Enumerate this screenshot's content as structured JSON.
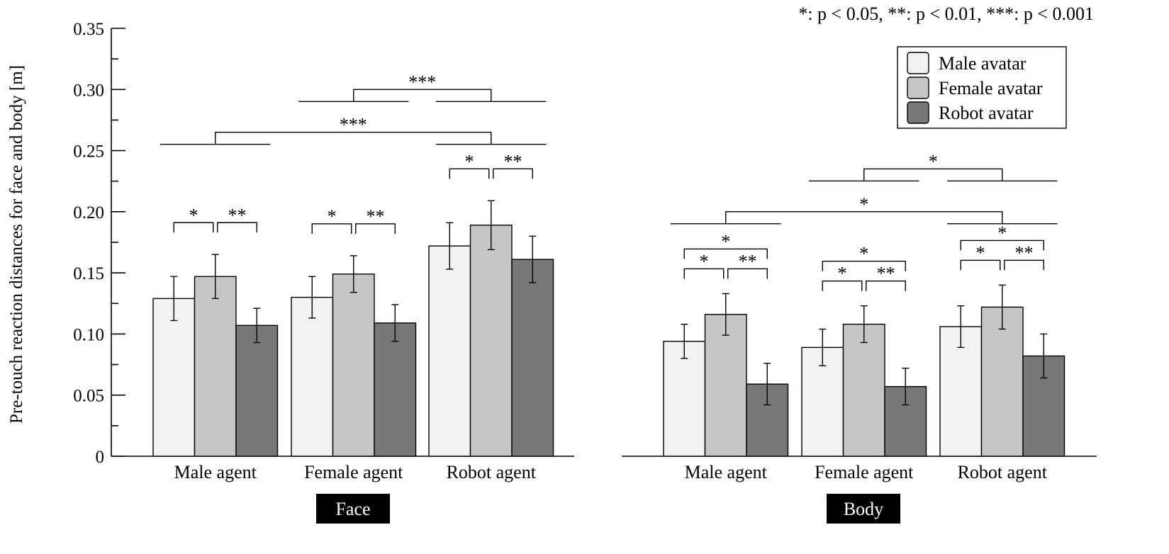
{
  "chart_data": {
    "type": "bar",
    "ylabel": "Pre-touch reaction distances for face and body [m]",
    "ylim": [
      0,
      0.35
    ],
    "yticks": [
      "0",
      "0.05",
      "0.10",
      "0.15",
      "0.20",
      "0.25",
      "0.30",
      "0.35"
    ],
    "ytick_values": [
      0,
      0.05,
      0.1,
      0.15,
      0.2,
      0.25,
      0.3,
      0.35
    ],
    "significance_note": "*: p < 0.05, **: p < 0.01, ***: p < 0.001",
    "legend": {
      "placement": "top-right",
      "entries": [
        {
          "label": "Male avatar",
          "color": "#f2f2f2"
        },
        {
          "label": "Female avatar",
          "color": "#c6c6c6"
        },
        {
          "label": "Robot avatar",
          "color": "#787878"
        }
      ]
    },
    "categories": [
      "Male agent",
      "Female agent",
      "Robot agent"
    ],
    "panels": [
      {
        "name": "Face",
        "series": [
          {
            "name": "Male avatar",
            "values": [
              0.129,
              0.13,
              0.172
            ],
            "errors": [
              0.018,
              0.017,
              0.019
            ]
          },
          {
            "name": "Female avatar",
            "values": [
              0.147,
              0.149,
              0.189
            ],
            "errors": [
              0.018,
              0.015,
              0.02
            ]
          },
          {
            "name": "Robot avatar",
            "values": [
              0.107,
              0.109,
              0.161
            ],
            "errors": [
              0.014,
              0.015,
              0.019
            ]
          }
        ],
        "within_group_significance": [
          {
            "pair": [
              "Male avatar",
              "Female avatar"
            ],
            "label": "*"
          },
          {
            "pair": [
              "Female avatar",
              "Robot avatar"
            ],
            "label": "**"
          }
        ],
        "between_group_significance": [
          {
            "pair": [
              "Male agent",
              "Robot agent"
            ],
            "label": "***",
            "level": 0.265
          },
          {
            "pair": [
              "Female agent",
              "Robot agent"
            ],
            "label": "***",
            "level": 0.3
          }
        ]
      },
      {
        "name": "Body",
        "series": [
          {
            "name": "Male avatar",
            "values": [
              0.094,
              0.089,
              0.106
            ],
            "errors": [
              0.014,
              0.015,
              0.017
            ]
          },
          {
            "name": "Female avatar",
            "values": [
              0.116,
              0.108,
              0.122
            ],
            "errors": [
              0.017,
              0.015,
              0.018
            ]
          },
          {
            "name": "Robot avatar",
            "values": [
              0.059,
              0.057,
              0.082
            ],
            "errors": [
              0.017,
              0.015,
              0.018
            ]
          }
        ],
        "within_group_significance": [
          {
            "pair": [
              "Male avatar",
              "Female avatar"
            ],
            "label": "*"
          },
          {
            "pair": [
              "Female avatar",
              "Robot avatar"
            ],
            "label": "**"
          },
          {
            "pair": [
              "Male avatar",
              "Robot avatar"
            ],
            "label": "*"
          }
        ],
        "between_group_significance": [
          {
            "pair": [
              "Male agent",
              "Robot agent"
            ],
            "label": "*",
            "level": 0.2
          },
          {
            "pair": [
              "Female agent",
              "Robot agent"
            ],
            "label": "*",
            "level": 0.235
          }
        ]
      }
    ]
  }
}
